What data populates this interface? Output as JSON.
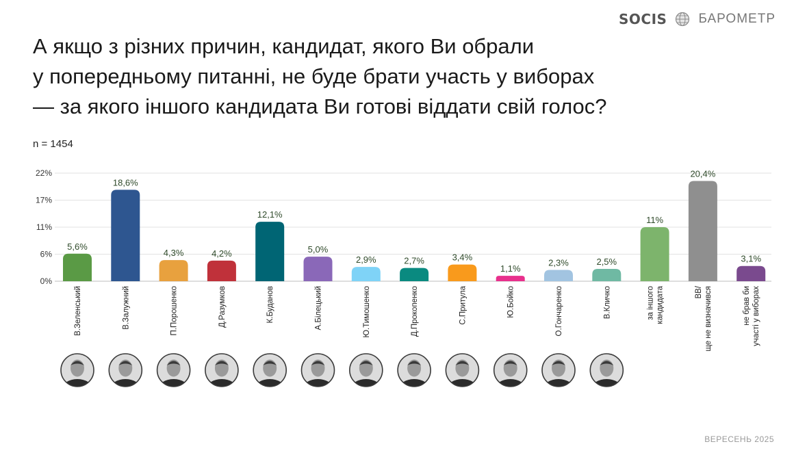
{
  "header": {
    "brand_logo": "SOCIS",
    "brand_label": "БАРОМЕТР",
    "globe_icon": "globe-icon"
  },
  "title_lines": [
    "А якщо з різних причин, кандидат, якого Ви обрали",
    "у попередньому питанні, не буде брати участь у виборах",
    "— за якого іншого кандидата Ви готові віддати свій голос?"
  ],
  "sample_size": "n = 1454",
  "footer": {
    "date": "ВЕРЕСЕНЬ 2025"
  },
  "chart_data": {
    "type": "bar",
    "title": "",
    "xlabel": "",
    "ylabel": "",
    "ylim": [
      0,
      22
    ],
    "yticks": [
      {
        "value": 0,
        "label": "0%"
      },
      {
        "value": 5.5,
        "label": "6%"
      },
      {
        "value": 11,
        "label": "11%"
      },
      {
        "value": 16.5,
        "label": "17%"
      },
      {
        "value": 22,
        "label": "22%"
      }
    ],
    "grid": true,
    "categories": [
      [
        "В.Зеленський"
      ],
      [
        "В.Залужний"
      ],
      [
        "П.Порошенко"
      ],
      [
        "Д.Разумков"
      ],
      [
        "К.Буданов"
      ],
      [
        "А.Білецький"
      ],
      [
        "Ю.Тимошенко"
      ],
      [
        "Д.Прокопенко"
      ],
      [
        "С.Притула"
      ],
      [
        "Ю.Бойко"
      ],
      [
        "О.Гончаренко"
      ],
      [
        "В.Кличко"
      ],
      [
        "за іншого",
        "кандидата"
      ],
      [
        "ВВ/",
        "ще не визначився"
      ],
      [
        "не брав би",
        "участі у виборах"
      ]
    ],
    "values": [
      5.6,
      18.6,
      4.3,
      4.2,
      12.1,
      5.0,
      2.9,
      2.7,
      3.4,
      1.1,
      2.3,
      2.5,
      11,
      20.4,
      3.1
    ],
    "value_labels": [
      "5,6%",
      "18,6%",
      "4,3%",
      "4,2%",
      "12,1%",
      "5,0%",
      "2,9%",
      "2,7%",
      "3,4%",
      "1,1%",
      "2,3%",
      "2,5%",
      "11%",
      "20,4%",
      "3,1%"
    ],
    "colors": [
      "#5a9a45",
      "#2e5690",
      "#e8a13e",
      "#c0313a",
      "#006574",
      "#8a68b8",
      "#7fd3f7",
      "#0a8a80",
      "#f99a1c",
      "#e8308c",
      "#a2c4e1",
      "#6fb9a3",
      "#7db46c",
      "#8f8f8f",
      "#7a4a8e"
    ],
    "portraits": [
      true,
      true,
      true,
      true,
      true,
      true,
      true,
      true,
      true,
      true,
      true,
      true,
      false,
      false,
      false
    ]
  }
}
